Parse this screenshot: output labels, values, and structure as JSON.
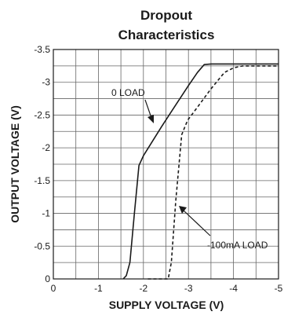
{
  "chart_data": {
    "type": "line",
    "title": [
      "Dropout",
      "Characteristics"
    ],
    "xlabel": "SUPPLY VOLTAGE (V)",
    "ylabel": "OUTPUT VOLTAGE (V)",
    "xlim": [
      0,
      -5
    ],
    "ylim": [
      0,
      -3.5
    ],
    "x_ticks": [
      0,
      -0.5,
      -1,
      -1.5,
      -2,
      -2.5,
      -3,
      -3.5,
      -4,
      -4.5,
      -5
    ],
    "y_ticks": [
      0,
      -0.25,
      -0.5,
      -0.75,
      -1,
      -1.25,
      -1.5,
      -1.75,
      -2,
      -2.25,
      -2.5,
      -2.75,
      -3,
      -3.25,
      -3.5
    ],
    "x_tick_labels": [
      "0",
      "-1",
      "-2",
      "-3",
      "-4",
      "-5"
    ],
    "y_tick_labels": [
      "0",
      "-0.5",
      "-1",
      "-1.5",
      "-2",
      "-2.5",
      "-3",
      "-3.5"
    ],
    "grid": true,
    "series": [
      {
        "name": "0 LOAD",
        "line_style": "solid",
        "color": "#1a1a1a",
        "x": [
          -1.55,
          -1.62,
          -1.7,
          -1.8,
          -1.9,
          -2.0,
          -2.2,
          -2.4,
          -2.6,
          -2.8,
          -3.0,
          -3.2,
          -3.35,
          -3.5,
          -3.8,
          -4.2,
          -5.0
        ],
        "y": [
          0,
          -0.05,
          -0.25,
          -1.0,
          -1.73,
          -1.88,
          -2.1,
          -2.32,
          -2.53,
          -2.74,
          -2.95,
          -3.15,
          -3.27,
          -3.28,
          -3.28,
          -3.28,
          -3.28
        ]
      },
      {
        "name": "-100mA LOAD",
        "line_style": "dashed",
        "color": "#1a1a1a",
        "x": [
          -2.1,
          -2.55,
          -2.62,
          -2.72,
          -2.85,
          -2.98,
          -3.2,
          -3.5,
          -3.8,
          -4.0,
          -4.2,
          -5.0
        ],
        "y": [
          0,
          0,
          -0.25,
          -1.2,
          -2.2,
          -2.42,
          -2.62,
          -2.9,
          -3.15,
          -3.22,
          -3.25,
          -3.25
        ]
      }
    ],
    "annotations": [
      {
        "text": "0 LOAD",
        "series": "0 LOAD"
      },
      {
        "text": "-100mA LOAD",
        "series": "-100mA LOAD"
      }
    ]
  }
}
